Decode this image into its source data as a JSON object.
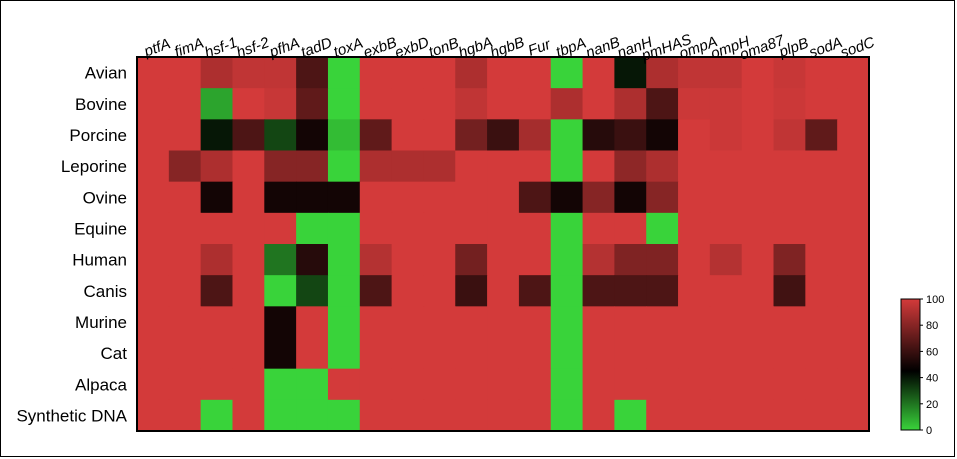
{
  "chart_data": {
    "type": "heatmap",
    "title": "",
    "columns": [
      "ptfA",
      "fimA",
      "hsf-1",
      "hsf-2",
      "pfhA",
      "tadD",
      "toxA",
      "exbB",
      "exbD",
      "tonB",
      "hgbA",
      "hgbB",
      "Fur",
      "tbpA",
      "nanB",
      "nanH",
      "pmHAS",
      "ompA",
      "ompH",
      "oma87",
      "plpB",
      "sodA",
      "sodC"
    ],
    "rows": [
      "Avian",
      "Bovine",
      "Porcine",
      "Leporine",
      "Ovine",
      "Equine",
      "Human",
      "Canis",
      "Murine",
      "Cat",
      "Alpaca",
      "Synthetic DNA"
    ],
    "values": [
      [
        100,
        100,
        90,
        95,
        95,
        65,
        0,
        100,
        100,
        100,
        90,
        100,
        100,
        0,
        100,
        40,
        90,
        95,
        95,
        100,
        97,
        100,
        100
      ],
      [
        100,
        100,
        10,
        100,
        97,
        70,
        0,
        100,
        100,
        100,
        95,
        100,
        100,
        90,
        100,
        90,
        65,
        98,
        98,
        100,
        98,
        100,
        100
      ],
      [
        100,
        100,
        40,
        65,
        30,
        50,
        5,
        70,
        100,
        100,
        75,
        60,
        88,
        0,
        55,
        60,
        50,
        100,
        98,
        100,
        95,
        70,
        100
      ],
      [
        100,
        80,
        90,
        100,
        80,
        80,
        0,
        90,
        90,
        90,
        100,
        100,
        100,
        0,
        100,
        82,
        90,
        100,
        100,
        100,
        100,
        100,
        100
      ],
      [
        100,
        100,
        50,
        100,
        50,
        50,
        50,
        100,
        100,
        100,
        100,
        100,
        65,
        50,
        80,
        50,
        80,
        100,
        100,
        100,
        100,
        100,
        100
      ],
      [
        100,
        100,
        100,
        100,
        100,
        0,
        0,
        100,
        100,
        100,
        100,
        100,
        100,
        0,
        100,
        100,
        0,
        100,
        100,
        100,
        100,
        100,
        100
      ],
      [
        100,
        100,
        90,
        100,
        20,
        55,
        0,
        92,
        100,
        100,
        75,
        100,
        100,
        0,
        92,
        78,
        78,
        100,
        92,
        100,
        78,
        100,
        100
      ],
      [
        100,
        100,
        65,
        100,
        0,
        30,
        0,
        65,
        100,
        100,
        60,
        100,
        65,
        0,
        65,
        65,
        65,
        100,
        100,
        100,
        62,
        100,
        100
      ],
      [
        100,
        100,
        100,
        100,
        50,
        100,
        0,
        100,
        100,
        100,
        100,
        100,
        100,
        0,
        100,
        100,
        100,
        100,
        100,
        100,
        100,
        100,
        100
      ],
      [
        100,
        100,
        100,
        100,
        50,
        100,
        0,
        100,
        100,
        100,
        100,
        100,
        100,
        0,
        100,
        100,
        100,
        100,
        100,
        100,
        100,
        100,
        100
      ],
      [
        100,
        100,
        100,
        100,
        0,
        0,
        100,
        100,
        100,
        100,
        100,
        100,
        100,
        0,
        100,
        100,
        100,
        100,
        100,
        100,
        100,
        100,
        100
      ],
      [
        100,
        100,
        0,
        100,
        0,
        0,
        0,
        100,
        100,
        100,
        100,
        100,
        100,
        0,
        100,
        0,
        100,
        100,
        100,
        100,
        100,
        100,
        100
      ]
    ],
    "colorbar": {
      "ticks": [
        0,
        20,
        40,
        60,
        80,
        100
      ],
      "min": 0,
      "max": 100
    },
    "colors": {
      "low": "#39d33a",
      "mid": "#000000",
      "high": "#d33a3a"
    }
  }
}
